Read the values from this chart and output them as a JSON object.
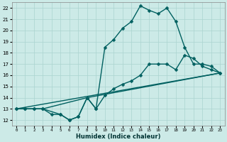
{
  "xlabel": "Humidex (Indice chaleur)",
  "xlim": [
    -0.5,
    23.5
  ],
  "ylim": [
    11.5,
    22.5
  ],
  "xticks": [
    0,
    1,
    2,
    3,
    4,
    5,
    6,
    7,
    8,
    9,
    10,
    11,
    12,
    13,
    14,
    15,
    16,
    17,
    18,
    19,
    20,
    21,
    22,
    23
  ],
  "yticks": [
    12,
    13,
    14,
    15,
    16,
    17,
    18,
    19,
    20,
    21,
    22
  ],
  "bg_color": "#cceae7",
  "grid_color": "#aad4d0",
  "line_color": "#006060",
  "line1_x": [
    0,
    1,
    2,
    3,
    4,
    5,
    6,
    7,
    8,
    9,
    10,
    11,
    12,
    13,
    14,
    15,
    16,
    17,
    18,
    19,
    20,
    21,
    22,
    23
  ],
  "line1_y": [
    13,
    13,
    13,
    13,
    12.5,
    12.5,
    12,
    12.3,
    14,
    13,
    18.5,
    19.2,
    20.2,
    20.8,
    22.2,
    21.8,
    21.5,
    22,
    20.8,
    18.5,
    17,
    17,
    16.8,
    16.2
  ],
  "line2_x": [
    0,
    1,
    2,
    3,
    5,
    6,
    7,
    8,
    9,
    10,
    11,
    12,
    13,
    14,
    15,
    16,
    17,
    18,
    19,
    20,
    21,
    22,
    23
  ],
  "line2_y": [
    13,
    13,
    13,
    13,
    12.5,
    12,
    12.3,
    14,
    13,
    14.2,
    14.8,
    15.2,
    15.5,
    16,
    17,
    17,
    17,
    16.5,
    17.8,
    17.5,
    16.8,
    16.5,
    16.2
  ],
  "line3_x": [
    0,
    23
  ],
  "line3_y": [
    13,
    16.2
  ],
  "line4_x": [
    0,
    3,
    8,
    23
  ],
  "line4_y": [
    13,
    13,
    14,
    16.2
  ],
  "marker_size": 2.5,
  "line_width": 1.0
}
